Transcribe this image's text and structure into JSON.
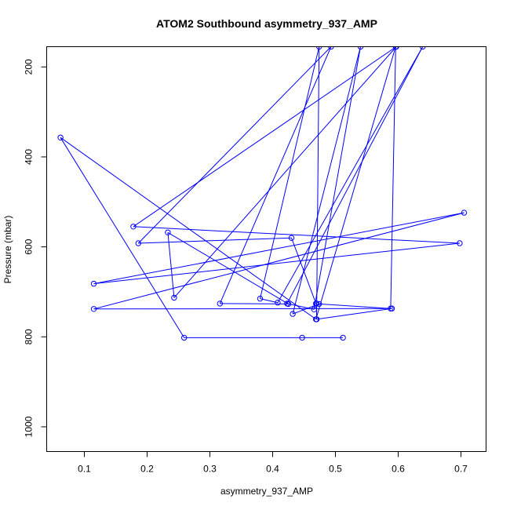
{
  "chart_data": {
    "type": "line",
    "title": "ATOM2 Southbound asymmetry_937_AMP",
    "xlabel": "asymmetry_937_AMP",
    "ylabel": "Pressure (mbar)",
    "xlim": [
      0.04,
      0.74
    ],
    "ylim": [
      1055,
      155
    ],
    "y_reversed": true,
    "x_ticks": [
      0.1,
      0.2,
      0.3,
      0.4,
      0.5,
      0.6,
      0.7
    ],
    "x_tick_labels": [
      "0.1",
      "0.2",
      "0.3",
      "0.4",
      "0.5",
      "0.6",
      "0.7"
    ],
    "y_ticks": [
      200,
      400,
      600,
      800,
      1000
    ],
    "y_tick_labels": [
      "200",
      "400",
      "600",
      "800",
      "1000"
    ],
    "grid": false,
    "legend": "none",
    "colors": {
      "series": "#0000ff",
      "axes": "#000000",
      "background": "#ffffff"
    },
    "series": [
      {
        "points": [
          {
            "x": 0.512,
            "y": 802
          },
          {
            "x": 0.447,
            "y": 802
          },
          {
            "x": 0.259,
            "y": 802
          },
          {
            "x": 0.062,
            "y": 357
          },
          {
            "x": 0.469,
            "y": 761
          },
          {
            "x": 0.596,
            "y": 155
          },
          {
            "x": 0.588,
            "y": 737
          },
          {
            "x": 0.474,
            "y": 727
          },
          {
            "x": 0.432,
            "y": 749
          },
          {
            "x": 0.54,
            "y": 155
          },
          {
            "x": 0.466,
            "y": 739
          },
          {
            "x": 0.423,
            "y": 726
          },
          {
            "x": 0.639,
            "y": 155
          },
          {
            "x": 0.408,
            "y": 724
          },
          {
            "x": 0.38,
            "y": 715
          },
          {
            "x": 0.474,
            "y": 155
          },
          {
            "x": 0.47,
            "y": 761
          },
          {
            "x": 0.59,
            "y": 737
          },
          {
            "x": 0.115,
            "y": 738
          },
          {
            "x": 0.705,
            "y": 524
          },
          {
            "x": 0.115,
            "y": 682
          },
          {
            "x": 0.698,
            "y": 592
          },
          {
            "x": 0.178,
            "y": 555
          },
          {
            "x": 0.597,
            "y": 155
          },
          {
            "x": 0.243,
            "y": 713
          },
          {
            "x": 0.233,
            "y": 568
          },
          {
            "x": 0.425,
            "y": 727
          },
          {
            "x": 0.316,
            "y": 726
          },
          {
            "x": 0.493,
            "y": 155
          },
          {
            "x": 0.186,
            "y": 592
          },
          {
            "x": 0.43,
            "y": 580
          },
          {
            "x": 0.469,
            "y": 726
          },
          {
            "x": 0.47,
            "y": 726
          },
          {
            "x": 0.47,
            "y": 761
          }
        ]
      }
    ]
  }
}
